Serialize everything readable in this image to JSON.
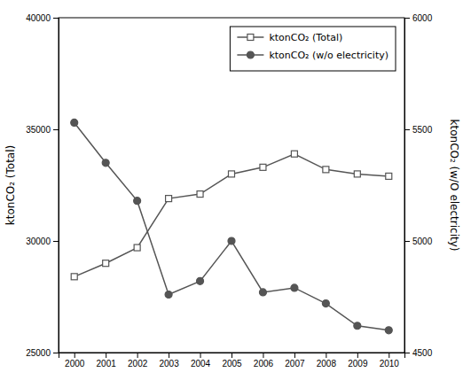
{
  "chart_data": {
    "type": "line",
    "x": [
      2000,
      2001,
      2002,
      2003,
      2004,
      2005,
      2006,
      2007,
      2008,
      2009,
      2010
    ],
    "xlim": [
      1999.5,
      2010.5
    ],
    "xticks": [
      2000,
      2001,
      2002,
      2003,
      2004,
      2005,
      2006,
      2007,
      2008,
      2009,
      2010
    ],
    "ylabel": "ktonCO₂ (Total)",
    "y2label": "ktonCO₂ (w/O electricity)",
    "ylim": [
      25000,
      40000
    ],
    "yticks": [
      25000,
      30000,
      35000,
      40000
    ],
    "y2lim": [
      4500,
      6000
    ],
    "y2ticks": [
      4500,
      5000,
      5500,
      6000
    ],
    "grid": false,
    "legend": "upper right",
    "series": [
      {
        "name": "ktonCO₂ (Total)",
        "color": "#555555",
        "marker": "square",
        "axis": "y",
        "values": [
          28400,
          29000,
          29700,
          31900,
          32100,
          33000,
          33300,
          33900,
          33200,
          33000,
          32900
        ]
      },
      {
        "name": "ktonCO₂ (w/o electricity)",
        "color": "#555555",
        "marker": "circle",
        "axis": "y2",
        "values": [
          5530,
          5350,
          5180,
          4760,
          4820,
          5000,
          4770,
          4790,
          4720,
          4620,
          4600
        ]
      }
    ]
  }
}
